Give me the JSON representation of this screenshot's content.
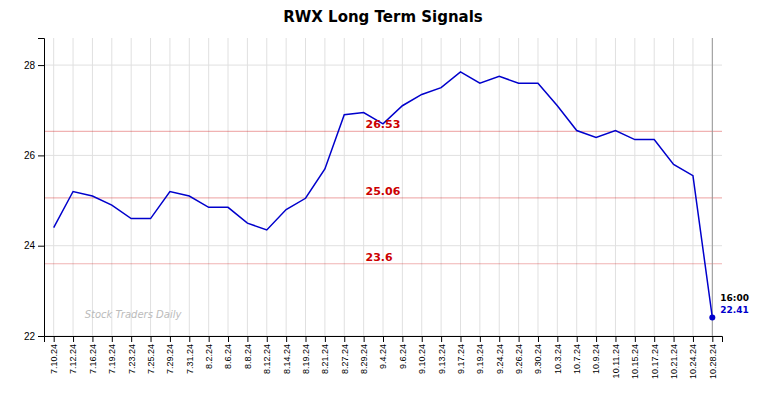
{
  "chart_data": {
    "type": "line",
    "title": "RWX Long Term Signals",
    "categories": [
      "7.10.24",
      "7.12.24",
      "7.16.24",
      "7.19.24",
      "7.23.24",
      "7.25.24",
      "7.29.24",
      "7.31.24",
      "8.2.24",
      "8.6.24",
      "8.8.24",
      "8.12.24",
      "8.14.24",
      "8.19.24",
      "8.21.24",
      "8.27.24",
      "8.29.24",
      "9.4.24",
      "9.6.24",
      "9.10.24",
      "9.13.24",
      "9.17.24",
      "9.19.24",
      "9.24.24",
      "9.26.24",
      "9.30.24",
      "10.3.24",
      "10.7.24",
      "10.9.24",
      "10.11.24",
      "10.15.24",
      "10.17.24",
      "10.21.24",
      "10.24.24",
      "10.28.24"
    ],
    "values": [
      24.4,
      25.2,
      25.1,
      24.9,
      24.6,
      24.6,
      25.2,
      25.1,
      24.85,
      24.85,
      24.5,
      24.35,
      24.8,
      25.05,
      25.7,
      26.9,
      26.95,
      26.7,
      27.1,
      27.35,
      27.5,
      27.85,
      27.6,
      27.75,
      27.6,
      27.6,
      27.1,
      26.55,
      26.4,
      26.55,
      26.35,
      26.35,
      25.8,
      25.55,
      22.41
    ],
    "color": "#0000cc",
    "ylim": [
      22.0,
      28.6
    ],
    "yticks": [
      22,
      24,
      26,
      28
    ],
    "grid": true,
    "reference_lines": {
      "values": [
        26.53,
        25.06,
        23.6
      ],
      "color": "#cc0000"
    },
    "annotations": [
      {
        "text": "16:00"
      },
      {
        "text": "22.41",
        "color": "#0000cc"
      }
    ],
    "watermark": "Stock Traders Daily"
  }
}
